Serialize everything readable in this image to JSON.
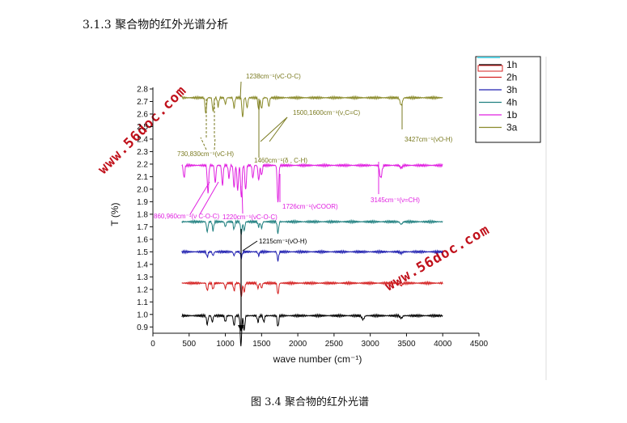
{
  "document": {
    "section_heading": "3.1.3 聚合物的红外光谱分析",
    "caption": "图 3.4 聚合物的红外光谱",
    "watermark": "www.56doc.com"
  },
  "chart_data": {
    "type": "line",
    "xlabel": "wave number (cm⁻¹)",
    "ylabel": "T (%)",
    "xlim": [
      0,
      4500
    ],
    "ylim": [
      0.85,
      2.8
    ],
    "x_ticks": [
      0,
      500,
      1000,
      1500,
      2000,
      2500,
      3000,
      3500,
      4000,
      4500
    ],
    "y_ticks": [
      0.9,
      1.0,
      1.1,
      1.2,
      1.3,
      1.4,
      1.5,
      1.6,
      1.7,
      1.8,
      1.9,
      2.0,
      2.1,
      2.2,
      2.3,
      2.4,
      2.5,
      2.6,
      2.7,
      2.8
    ],
    "x_range": [
      400,
      4000
    ],
    "legend_position": "top-right",
    "series": [
      {
        "name": "1h",
        "color": "#000000",
        "baseline": 0.99,
        "peaks": [
          [
            750,
            0.07
          ],
          [
            820,
            0.05
          ],
          [
            1000,
            0.05
          ],
          [
            1120,
            0.08
          ],
          [
            1215,
            0.24
          ],
          [
            1260,
            0.12
          ],
          [
            1450,
            0.05
          ],
          [
            1530,
            0.05
          ],
          [
            1726,
            0.09
          ],
          [
            2900,
            0.03
          ],
          [
            3427,
            0.02
          ]
        ]
      },
      {
        "name": "2h",
        "color": "#d42020",
        "baseline": 1.25,
        "peaks": [
          [
            750,
            0.06
          ],
          [
            830,
            0.05
          ],
          [
            1000,
            0.04
          ],
          [
            1120,
            0.06
          ],
          [
            1220,
            0.11
          ],
          [
            1260,
            0.07
          ],
          [
            1450,
            0.04
          ],
          [
            1500,
            0.04
          ],
          [
            1726,
            0.09
          ],
          [
            3427,
            0.02
          ]
        ]
      },
      {
        "name": "3h",
        "color": "#2020b0",
        "baseline": 1.5,
        "peaks": [
          [
            750,
            0.04
          ],
          [
            830,
            0.03
          ],
          [
            1120,
            0.03
          ],
          [
            1220,
            0.05
          ],
          [
            1460,
            0.03
          ],
          [
            1726,
            0.07
          ],
          [
            3427,
            0.01
          ]
        ]
      },
      {
        "name": "4h",
        "color": "#208080",
        "baseline": 1.74,
        "peaks": [
          [
            750,
            0.08
          ],
          [
            830,
            0.07
          ],
          [
            1000,
            0.04
          ],
          [
            1120,
            0.06
          ],
          [
            1220,
            0.1
          ],
          [
            1260,
            0.07
          ],
          [
            1460,
            0.04
          ],
          [
            1500,
            0.05
          ],
          [
            1726,
            0.09
          ],
          [
            3427,
            0.02
          ]
        ]
      },
      {
        "name": "1b",
        "color": "#e020e0",
        "baseline": 2.19,
        "peaks": [
          [
            430,
            0.1
          ],
          [
            760,
            0.22
          ],
          [
            860,
            0.14
          ],
          [
            960,
            0.16
          ],
          [
            1050,
            0.1
          ],
          [
            1120,
            0.18
          ],
          [
            1170,
            0.2
          ],
          [
            1220,
            0.26
          ],
          [
            1280,
            0.2
          ],
          [
            1380,
            0.1
          ],
          [
            1460,
            0.12
          ],
          [
            1500,
            0.08
          ],
          [
            1726,
            0.3
          ],
          [
            3145,
            0.1
          ],
          [
            3427,
            0.02
          ]
        ]
      },
      {
        "name": "3a",
        "color": "#8a8a2a",
        "baseline": 2.73,
        "peaks": [
          [
            730,
            0.13
          ],
          [
            830,
            0.11
          ],
          [
            900,
            0.07
          ],
          [
            1000,
            0.05
          ],
          [
            1120,
            0.08
          ],
          [
            1238,
            0.16
          ],
          [
            1300,
            0.08
          ],
          [
            1460,
            0.1
          ],
          [
            1500,
            0.09
          ],
          [
            1600,
            0.07
          ],
          [
            3427,
            0.06
          ]
        ]
      }
    ],
    "annotations": [
      {
        "label": "1238cm⁻¹(νC-O-C)",
        "color": "#7a7a20"
      },
      {
        "label": "1500,1600cm⁻¹(ν,C=C)",
        "color": "#7a7a20"
      },
      {
        "label": "730,830cm⁻¹(νC-H)",
        "color": "#7a7a20"
      },
      {
        "label": "1460cm⁻¹(δ , C-H)",
        "color": "#7a7a20"
      },
      {
        "label": "3427cm⁻¹(νO-H)",
        "color": "#7a7a20"
      },
      {
        "label": "3145cm⁻¹(ν=CH)",
        "color": "#e020e0"
      },
      {
        "label": "1726cm⁻¹(νCOOR)",
        "color": "#e020e0"
      },
      {
        "label": "860,960cm⁻¹(ν  C-O-C)",
        "color": "#e020e0"
      },
      {
        "label": "1220cm⁻¹(νC-O-C)",
        "color": "#e020e0"
      },
      {
        "label": "1215cm⁻¹(νO-H)",
        "color": "#000000"
      }
    ]
  }
}
